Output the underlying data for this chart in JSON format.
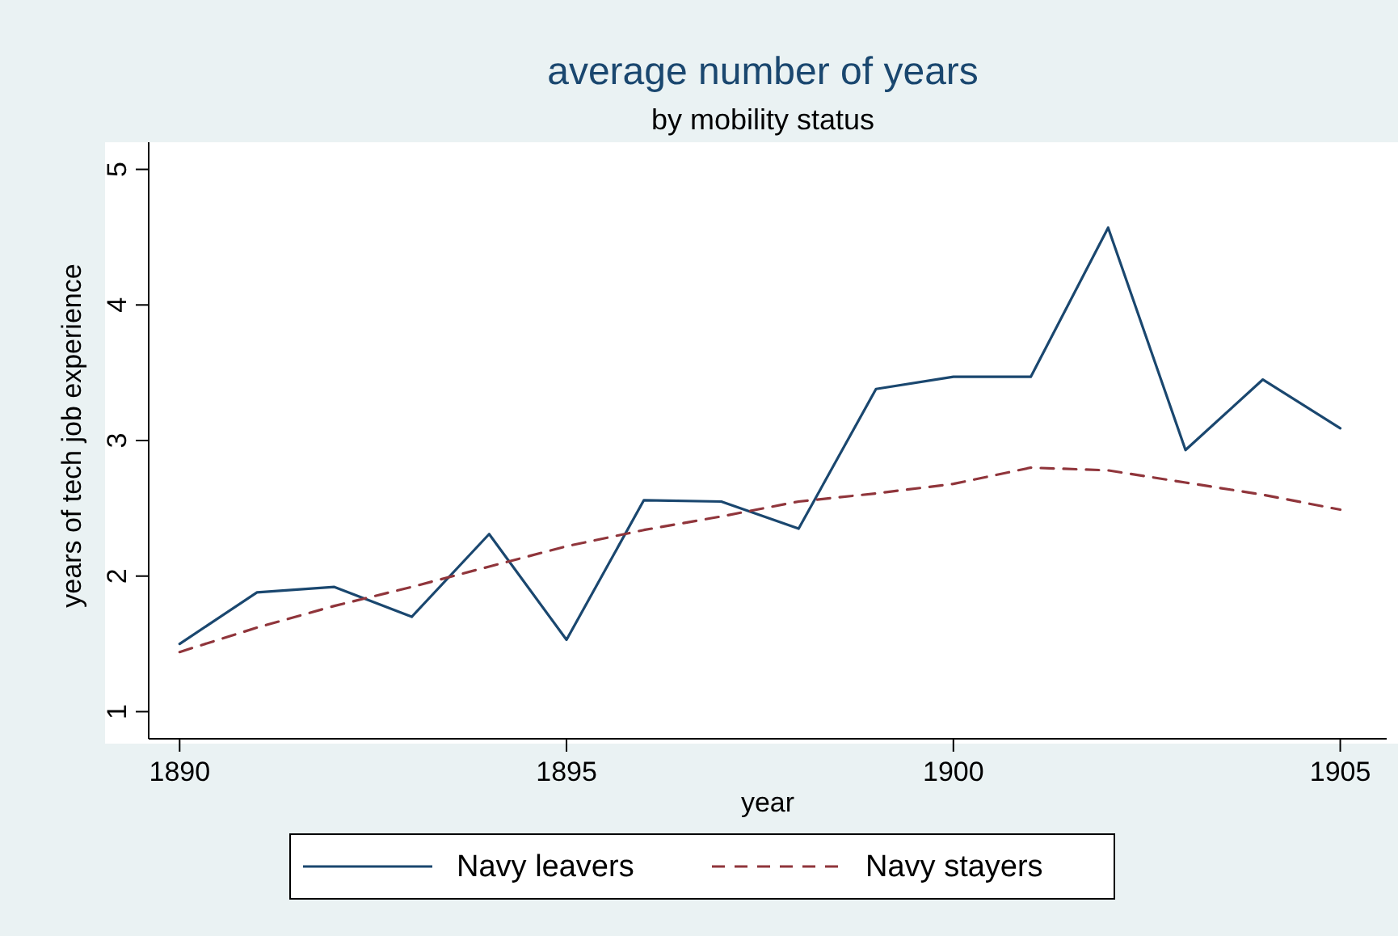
{
  "chart_data": {
    "type": "line",
    "title": "average number of years",
    "subtitle": "by mobility status",
    "xlabel": "year",
    "ylabel": "years of tech job experience",
    "x": [
      1890,
      1891,
      1892,
      1893,
      1894,
      1895,
      1896,
      1897,
      1898,
      1899,
      1900,
      1901,
      1902,
      1903,
      1904,
      1905
    ],
    "series": [
      {
        "name": "Navy leavers",
        "color": "#1a476f",
        "line_style": "solid",
        "values": [
          1.5,
          1.88,
          1.92,
          1.7,
          2.31,
          1.53,
          2.56,
          2.55,
          2.35,
          3.38,
          3.47,
          3.47,
          4.57,
          2.93,
          3.45,
          3.09
        ]
      },
      {
        "name": "Navy stayers",
        "color": "#90353b",
        "line_style": "dashed",
        "values": [
          1.44,
          1.62,
          1.78,
          1.92,
          2.07,
          2.22,
          2.34,
          2.44,
          2.55,
          2.61,
          2.68,
          2.8,
          2.78,
          2.69,
          2.6,
          2.49
        ]
      }
    ],
    "xlim": [
      1889.6,
      1905.6
    ],
    "xticks": [
      1890,
      1895,
      1900,
      1905
    ],
    "ylim": [
      0.8,
      5.2
    ],
    "yticks": [
      1,
      2,
      3,
      4,
      5
    ],
    "grid": false,
    "legend": "bottom"
  }
}
